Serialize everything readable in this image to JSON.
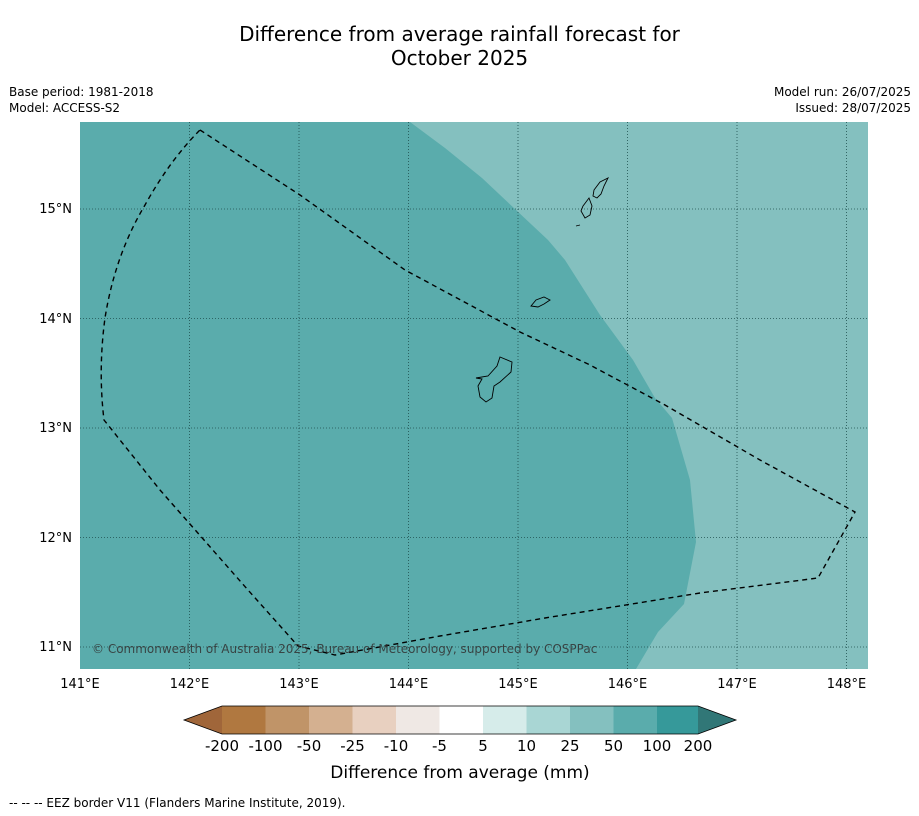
{
  "header": {
    "title_line1": "Difference from average rainfall forecast for",
    "title_line2": "October 2025",
    "base_period": "Base period: 1981-2018",
    "model": "Model: ACCESS-S2",
    "model_run": "Model run: 26/07/2025",
    "issued": "Issued: 28/07/2025"
  },
  "map": {
    "lon_labels": [
      "141°E",
      "142°E",
      "143°E",
      "144°E",
      "145°E",
      "146°E",
      "147°E",
      "148°E"
    ],
    "lat_labels": [
      "15°N",
      "14°N",
      "13°N",
      "12°N",
      "11°N"
    ],
    "credit": "© Commonwealth of Australia 2025, Bureau of Meteorology, supported by COSPPac",
    "west_zone_color": "#5aacac",
    "east_zone_color": "#84c0bf",
    "west_zone_category": "50 to 100",
    "east_zone_category": "25 to 50"
  },
  "colorbar": {
    "label": "Difference from average (mm)",
    "ticks": [
      "-200",
      "-100",
      "-50",
      "-25",
      "-10",
      "-5",
      "5",
      "10",
      "25",
      "50",
      "100",
      "200"
    ],
    "colors": [
      "#a0663a",
      "#b07840",
      "#c09468",
      "#d4b090",
      "#e8d0c0",
      "#efe8e4",
      "#ffffff",
      "#d6ecea",
      "#a9d6d4",
      "#84c0bf",
      "#5aacac",
      "#36999a",
      "#317777"
    ]
  },
  "footnote": "--  --  -- EEZ border V11 (Flanders Marine Institute, 2019)."
}
